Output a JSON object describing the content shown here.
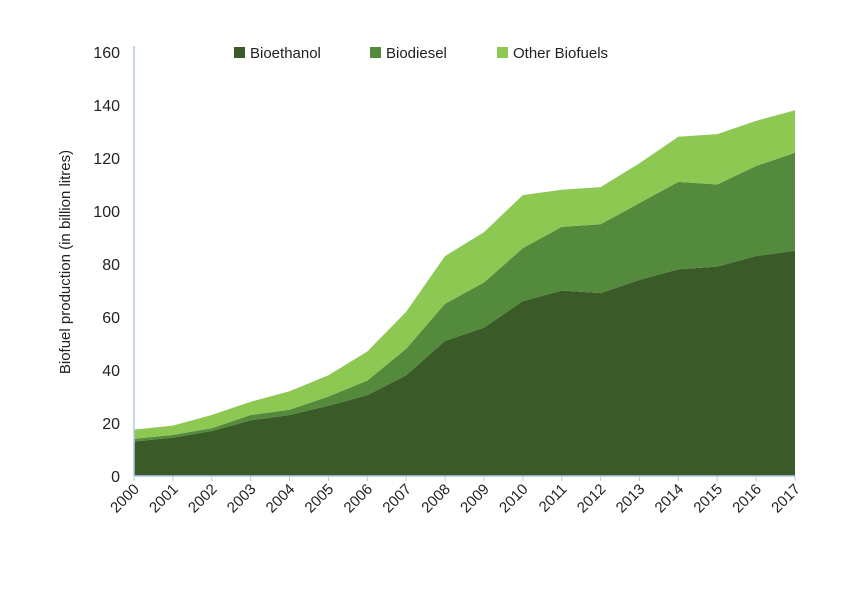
{
  "chart_data": {
    "type": "area",
    "stacked": true,
    "title": "",
    "xlabel": "",
    "ylabel": "Biofuel production (in billion litres)",
    "ylim": [
      0,
      160
    ],
    "yticks": [
      0,
      20,
      40,
      60,
      80,
      100,
      120,
      140,
      160
    ],
    "grid": false,
    "legend_position": "top",
    "categories": [
      "2000",
      "2001",
      "2002",
      "2003",
      "2004",
      "2005",
      "2006",
      "2007",
      "2008",
      "2009",
      "2010",
      "2011",
      "2012",
      "2013",
      "2014",
      "2015",
      "2016",
      "2017"
    ],
    "series": [
      {
        "name": "Bioethanol",
        "color": "#3a5a28",
        "values": [
          13,
          14.5,
          17,
          21,
          23,
          26.5,
          30.5,
          38,
          51,
          56,
          66,
          70,
          69,
          74,
          78,
          79,
          83,
          85
        ]
      },
      {
        "name": "Biodiesel",
        "color": "#538a3c",
        "values": [
          1,
          1,
          1,
          2,
          2,
          3.5,
          5.5,
          10,
          14,
          17,
          20,
          24,
          26,
          29,
          33,
          31,
          34,
          37
        ]
      },
      {
        "name": "Other Biofuels",
        "color": "#8dc853",
        "values": [
          3.5,
          3.5,
          5,
          5,
          7,
          8,
          11,
          14,
          18,
          19,
          20,
          14,
          14,
          15,
          17,
          19,
          17,
          16
        ]
      }
    ],
    "axis_color": "#b4c7e7"
  }
}
